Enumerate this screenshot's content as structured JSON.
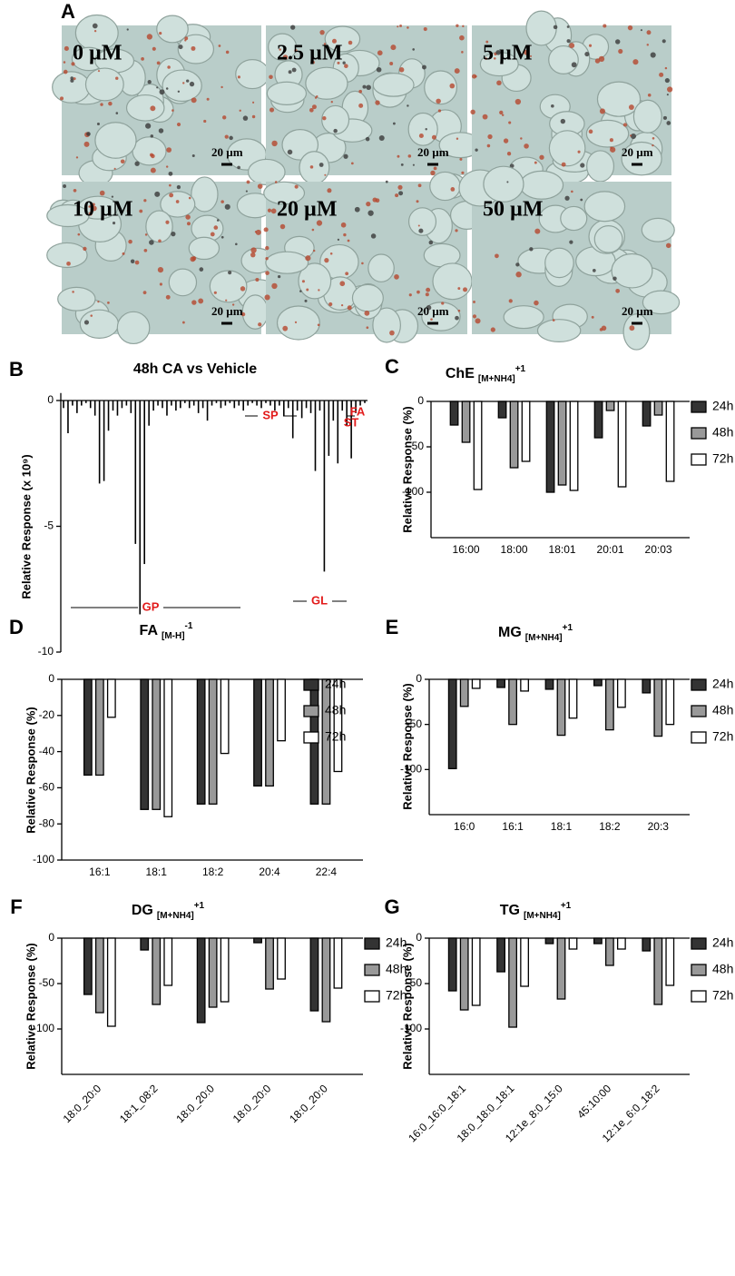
{
  "panel_a": {
    "label": "A",
    "images": [
      {
        "label": "0 µM",
        "scale_bar": "20 µm"
      },
      {
        "label": "2.5 µM",
        "scale_bar": "20 µm"
      },
      {
        "label": "5 µM",
        "scale_bar": "20 µm"
      },
      {
        "label": "10 µM",
        "scale_bar": "20 µm"
      },
      {
        "label": "20 µM",
        "scale_bar": "20 µm"
      },
      {
        "label": "50 µM",
        "scale_bar": "20 µm"
      }
    ]
  },
  "chart_data": [
    {
      "type": "spectrum",
      "panel": "B",
      "title": "48h CA vs Vehicle",
      "y_label": "Relative Response (x 10⁹)",
      "ylim": [
        -10,
        0.3
      ],
      "yticks": [
        0,
        -5,
        -10
      ],
      "color": "#000000",
      "categories": [
        null,
        null,
        null,
        null,
        null,
        null,
        null,
        null,
        null,
        null,
        null,
        null,
        null,
        null,
        null,
        null,
        null,
        null,
        null,
        null,
        null,
        null,
        null,
        null,
        null,
        null,
        null,
        null,
        null,
        null,
        null,
        null,
        null,
        null,
        null,
        null,
        null,
        null,
        null,
        null,
        null,
        null,
        null,
        null,
        null,
        null,
        null,
        null,
        null,
        null,
        null,
        null,
        null,
        null,
        null,
        null,
        null,
        null,
        null,
        null,
        null,
        null,
        null,
        null,
        null,
        null,
        null,
        null
      ],
      "values": [
        -0.3,
        -1.3,
        -0.2,
        -0.5,
        -0.2,
        -0.1,
        -0.3,
        -0.6,
        -3.3,
        -3.2,
        -1.2,
        -0.4,
        -0.6,
        -0.3,
        -0.2,
        -0.5,
        -5.7,
        -8.5,
        -6.5,
        -1.0,
        -0.4,
        -0.2,
        -0.3,
        -0.6,
        -0.2,
        -0.4,
        -0.3,
        -0.1,
        -0.3,
        -0.2,
        -0.5,
        -0.3,
        -0.8,
        -0.2,
        -0.1,
        -0.3,
        -0.2,
        -0.1,
        -0.3,
        -0.2,
        -0.4,
        -0.2,
        -0.1,
        -0.2,
        -0.3,
        -0.1,
        -0.2,
        -0.4,
        -0.2,
        -0.6,
        -0.3,
        -1.5,
        -0.4,
        -0.7,
        -0.3,
        -0.5,
        -2.8,
        -0.4,
        -6.8,
        -2.2,
        -0.8,
        -2.5,
        -0.4,
        -1.0,
        -2.3,
        -0.5,
        -0.2,
        -0.1
      ],
      "annotations": [
        "GP",
        "SP",
        "GL",
        "FA",
        "ST"
      ]
    },
    {
      "type": "grouped-bar",
      "panel": "C",
      "title": "ChE",
      "title_sub": "[M+NH4]",
      "title_sup": "+1",
      "y_label": "Relative Response (%)",
      "ylim": [
        -150,
        0
      ],
      "yticks": [
        0,
        -50,
        -100
      ],
      "legend": "outside-right",
      "categories": [
        "16:00",
        "18:00",
        "18:01",
        "20:01",
        "20:03"
      ],
      "series": [
        {
          "name": "24h",
          "color": "#333333",
          "values": [
            -26,
            -18,
            -100,
            -40,
            -27
          ]
        },
        {
          "name": "48h",
          "color": "#999999",
          "values": [
            -45,
            -73,
            -92,
            -10,
            -15
          ]
        },
        {
          "name": "72h",
          "color": "#ffffff",
          "values": [
            -97,
            -66,
            -98,
            -94,
            -88
          ]
        }
      ]
    },
    {
      "type": "grouped-bar",
      "panel": "D",
      "title": "FA",
      "title_sub": "[M-H]",
      "title_sup": "-1",
      "y_label": "Relative Response (%)",
      "ylim": [
        -100,
        0
      ],
      "yticks": [
        0,
        -20,
        -40,
        -60,
        -80,
        -100
      ],
      "legend": "upper-right",
      "categories": [
        "16:1",
        "18:1",
        "18:2",
        "20:4",
        "22:4"
      ],
      "series": [
        {
          "name": "24h",
          "color": "#333333",
          "values": [
            -53,
            -72,
            -69,
            -59,
            -69
          ]
        },
        {
          "name": "48h",
          "color": "#999999",
          "values": [
            -53,
            -72,
            -69,
            -59,
            -69
          ]
        },
        {
          "name": "72h",
          "color": "#ffffff",
          "values": [
            -21,
            -76,
            -41,
            -34,
            -51
          ]
        }
      ]
    },
    {
      "type": "grouped-bar",
      "panel": "E",
      "title": "MG",
      "title_sub": "[M+NH4]",
      "title_sup": "+1",
      "y_label": "Relative Response (%)",
      "ylim": [
        -150,
        0
      ],
      "yticks": [
        0,
        -50,
        -100
      ],
      "legend": "outside-right",
      "categories": [
        "16:0",
        "16:1",
        "18:1",
        "18:2",
        "20:3"
      ],
      "series": [
        {
          "name": "24h",
          "color": "#333333",
          "values": [
            -99,
            -9,
            -11,
            -7,
            -15
          ]
        },
        {
          "name": "48h",
          "color": "#999999",
          "values": [
            -30,
            -50,
            -62,
            -56,
            -63
          ]
        },
        {
          "name": "72h",
          "color": "#ffffff",
          "values": [
            -10,
            -13,
            -43,
            -31,
            -50
          ]
        }
      ]
    },
    {
      "type": "grouped-bar",
      "panel": "F",
      "title": "DG",
      "title_sub": "[M+NH4]",
      "title_sup": "+1",
      "y_label": "Relative Response (%)",
      "ylim": [
        -150,
        0
      ],
      "yticks": [
        0,
        -50,
        -100
      ],
      "legend": "outside-right",
      "rotate_labels": true,
      "categories": [
        "18:0_20:0",
        "18:1_08:2",
        "18:0_20:0",
        "18:0_20:0",
        "18:0_20:0"
      ],
      "series": [
        {
          "name": "24h",
          "color": "#333333",
          "values": [
            -62,
            -13,
            -93,
            -5,
            -80
          ]
        },
        {
          "name": "48h",
          "color": "#999999",
          "values": [
            -82,
            -73,
            -76,
            -56,
            -92
          ]
        },
        {
          "name": "72h",
          "color": "#ffffff",
          "values": [
            -97,
            -52,
            -70,
            -45,
            -55
          ]
        }
      ]
    },
    {
      "type": "grouped-bar",
      "panel": "G",
      "title": "TG",
      "title_sub": "[M+NH4]",
      "title_sup": "+1",
      "y_label": "Relative Response (%)",
      "ylim": [
        -150,
        0
      ],
      "yticks": [
        0,
        -50,
        -100
      ],
      "legend": "outside-right",
      "rotate_labels": true,
      "categories": [
        "16:0_16:0_18:1",
        "18:0_18:0_18:1",
        "12:1e_8:0_15:0",
        "45:10:00",
        "12:1e_6:0_18:2"
      ],
      "series": [
        {
          "name": "24h",
          "color": "#333333",
          "values": [
            -58,
            -37,
            -6,
            -6,
            -14
          ]
        },
        {
          "name": "48h",
          "color": "#999999",
          "values": [
            -79,
            -98,
            -67,
            -30,
            -73
          ]
        },
        {
          "name": "72h",
          "color": "#ffffff",
          "values": [
            -74,
            -53,
            -12,
            -12,
            -52
          ]
        }
      ]
    }
  ]
}
